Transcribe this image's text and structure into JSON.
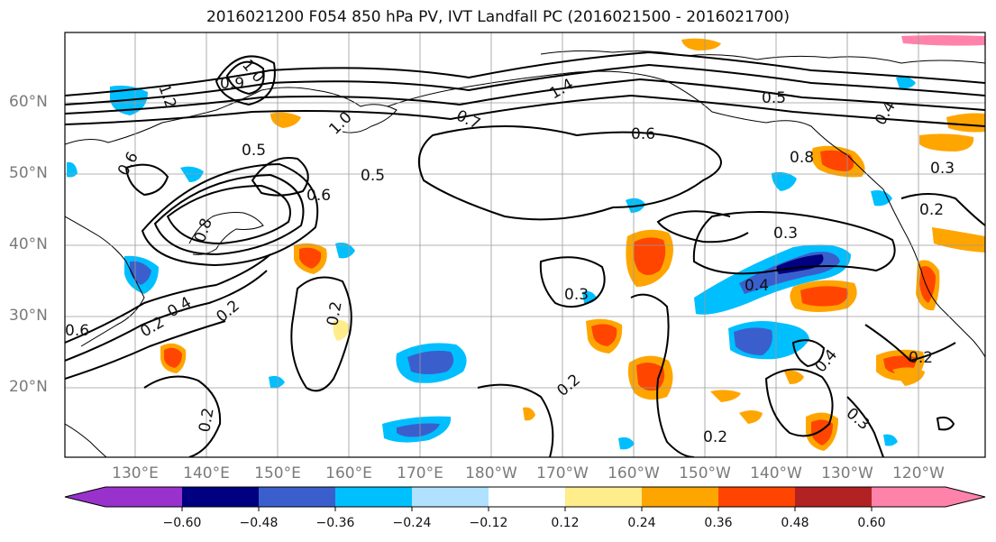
{
  "title": "2016021200 F054 850 hPa PV, IVT Landfall PC (2016021500 - 2016021700)",
  "map": {
    "lat_labels": [
      "60°N",
      "50°N",
      "40°N",
      "30°N",
      "20°N"
    ],
    "lon_labels": [
      "130°E",
      "140°E",
      "150°E",
      "160°E",
      "170°E",
      "180°W",
      "170°W",
      "160°W",
      "150°W",
      "140°W",
      "130°W",
      "120°W"
    ],
    "contour_labels": [
      "0.5",
      "0.6",
      "0.3",
      "0.2",
      "0.4",
      "0.7",
      "1.0",
      "1.2",
      "1.4",
      "0.8",
      "0.9"
    ]
  },
  "colorbar": {
    "tick_labels": [
      "−0.60",
      "−0.48",
      "−0.36",
      "−0.24",
      "−0.12",
      "0.12",
      "0.24",
      "0.36",
      "0.48",
      "0.60"
    ],
    "colors": [
      "#9932cc",
      "#000080",
      "#3a5fcd",
      "#00bfff",
      "#b0e2ff",
      "#ffffff",
      "#ffec8b",
      "#ffa500",
      "#ff4500",
      "#b22222",
      "#ff82ab"
    ]
  }
}
